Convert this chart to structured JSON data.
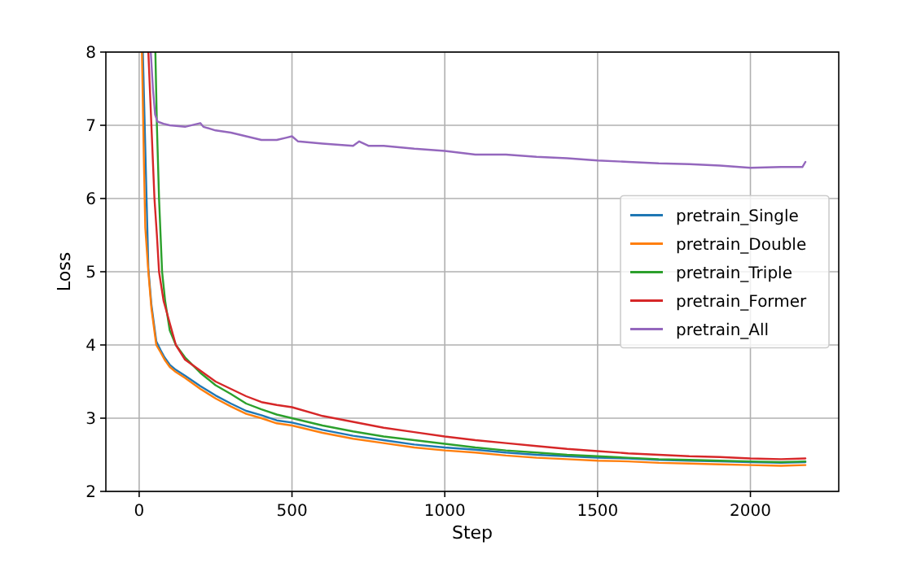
{
  "chart_data": {
    "type": "line",
    "xlabel": "Step",
    "ylabel": "Loss",
    "xlim": [
      -109,
      2289
    ],
    "ylim": [
      2,
      8
    ],
    "xticks": [
      0,
      500,
      1000,
      1500,
      2000
    ],
    "yticks": [
      2,
      3,
      4,
      5,
      6,
      7,
      8
    ],
    "grid": true,
    "legend": "right",
    "marker": "none",
    "line_style": "solid",
    "series": [
      {
        "name": "pretrain_Single",
        "color": "#1f77b4",
        "x": [
          12,
          15,
          20,
          30,
          40,
          56,
          70,
          83,
          100,
          120,
          150,
          200,
          250,
          300,
          350,
          400,
          450,
          500,
          600,
          700,
          800,
          900,
          1000,
          1100,
          1200,
          1300,
          1400,
          1500,
          1600,
          1700,
          1800,
          1900,
          2000,
          2100,
          2180
        ],
        "values": [
          8,
          null,
          null,
          5.05,
          4.55,
          4.05,
          3.93,
          3.83,
          3.73,
          3.66,
          3.58,
          3.44,
          3.31,
          3.2,
          3.1,
          3.04,
          2.97,
          2.94,
          2.84,
          2.76,
          2.7,
          2.64,
          2.6,
          2.57,
          2.53,
          2.5,
          2.48,
          2.46,
          2.45,
          2.43,
          2.42,
          2.41,
          2.4,
          2.39,
          2.4
        ]
      },
      {
        "name": "pretrain_Double",
        "color": "#ff7f0e",
        "x": [
          9,
          15,
          20,
          30,
          40,
          56,
          70,
          83,
          100,
          120,
          150,
          200,
          250,
          300,
          350,
          400,
          450,
          500,
          600,
          700,
          800,
          900,
          1000,
          1100,
          1200,
          1300,
          1400,
          1500,
          1600,
          1700,
          1800,
          1900,
          2000,
          2100,
          2180
        ],
        "values": [
          8,
          6.6,
          5.6,
          5.0,
          4.5,
          4.0,
          3.9,
          3.8,
          3.7,
          3.63,
          3.55,
          3.4,
          3.27,
          3.16,
          3.06,
          3.0,
          2.93,
          2.9,
          2.8,
          2.72,
          2.66,
          2.6,
          2.56,
          2.53,
          2.49,
          2.46,
          2.44,
          2.42,
          2.41,
          2.39,
          2.38,
          2.37,
          2.36,
          2.35,
          2.36
        ]
      },
      {
        "name": "pretrain_Triple",
        "color": "#2ca02c",
        "x": [
          53,
          58,
          65,
          75,
          85,
          100,
          120,
          150,
          200,
          250,
          300,
          350,
          400,
          450,
          500,
          600,
          700,
          800,
          900,
          1000,
          1100,
          1200,
          1300,
          1400,
          1500,
          1600,
          1700,
          1800,
          1900,
          2000,
          2100,
          2180
        ],
        "values": [
          8,
          7,
          6,
          5,
          4.6,
          4.2,
          4.0,
          3.83,
          3.62,
          3.45,
          3.33,
          3.2,
          3.12,
          3.05,
          3.0,
          2.9,
          2.82,
          2.75,
          2.7,
          2.65,
          2.6,
          2.56,
          2.53,
          2.5,
          2.48,
          2.46,
          2.44,
          2.43,
          2.42,
          2.41,
          2.4,
          2.41
        ]
      },
      {
        "name": "pretrain_Former",
        "color": "#d62728",
        "x": [
          30,
          38,
          45,
          50,
          58,
          65,
          80,
          100,
          120,
          150,
          200,
          250,
          300,
          350,
          400,
          450,
          500,
          600,
          700,
          800,
          900,
          1000,
          1100,
          1200,
          1300,
          1400,
          1500,
          1600,
          1700,
          1800,
          1900,
          2000,
          2100,
          2180
        ],
        "values": [
          8,
          7.2,
          6.5,
          6,
          5.5,
          5,
          4.6,
          4.3,
          4.0,
          3.8,
          3.65,
          3.5,
          3.4,
          3.3,
          3.22,
          3.18,
          3.15,
          3.03,
          2.95,
          2.87,
          2.81,
          2.75,
          2.7,
          2.66,
          2.62,
          2.58,
          2.55,
          2.52,
          2.5,
          2.48,
          2.47,
          2.45,
          2.44,
          2.45
        ]
      },
      {
        "name": "pretrain_All",
        "color": "#9467bd",
        "x": [
          38,
          45,
          52,
          60,
          80,
          100,
          150,
          200,
          210,
          250,
          300,
          350,
          400,
          450,
          480,
          500,
          520,
          600,
          700,
          720,
          750,
          800,
          900,
          1000,
          1100,
          1200,
          1300,
          1400,
          1500,
          1600,
          1700,
          1800,
          1900,
          2000,
          2100,
          2170,
          2180
        ],
        "values": [
          8,
          7.5,
          7.15,
          7.05,
          7.02,
          7.0,
          6.98,
          7.03,
          6.98,
          6.93,
          6.9,
          6.85,
          6.8,
          6.8,
          6.83,
          6.85,
          6.78,
          6.75,
          6.72,
          6.78,
          6.72,
          6.72,
          6.68,
          6.65,
          6.6,
          6.6,
          6.57,
          6.55,
          6.52,
          6.5,
          6.48,
          6.47,
          6.45,
          6.42,
          6.43,
          6.43,
          6.5
        ]
      }
    ]
  }
}
